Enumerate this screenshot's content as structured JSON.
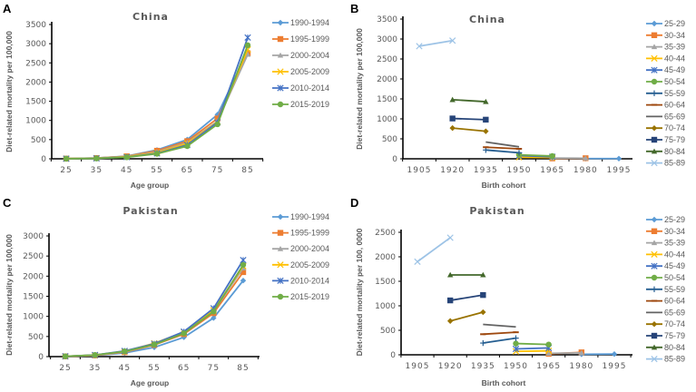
{
  "chart_data": [
    {
      "panel": "A",
      "type": "line",
      "title": "China",
      "xlabel": "Age group",
      "ylabel": "Diet-related mortality per 100,000",
      "categories": [
        "25",
        "35",
        "45",
        "55",
        "65",
        "75",
        "85"
      ],
      "yticks": [
        0,
        500,
        1000,
        1500,
        2000,
        2500,
        3000,
        3500
      ],
      "ylim": [
        0,
        3500
      ],
      "legend": "right",
      "series": [
        {
          "name": "1990-1994",
          "color": "#5B9BD5",
          "marker": "diamond",
          "values": [
            5,
            20,
            70,
            230,
            500,
            1150,
            2800
          ]
        },
        {
          "name": "1995-1999",
          "color": "#ED7D31",
          "marker": "square",
          "values": [
            5,
            20,
            65,
            210,
            460,
            1050,
            2750
          ]
        },
        {
          "name": "2000-2004",
          "color": "#A5A5A5",
          "marker": "triangle",
          "values": [
            4,
            18,
            60,
            180,
            420,
            980,
            2720
          ]
        },
        {
          "name": "2005-2009",
          "color": "#FFC000",
          "marker": "x",
          "values": [
            4,
            15,
            55,
            160,
            400,
            960,
            2850
          ]
        },
        {
          "name": "2010-2014",
          "color": "#4472C4",
          "marker": "star",
          "values": [
            3,
            12,
            45,
            140,
            360,
            950,
            3160
          ]
        },
        {
          "name": "2015-2019",
          "color": "#70AD47",
          "marker": "circle",
          "values": [
            3,
            10,
            40,
            130,
            330,
            900,
            2960
          ]
        }
      ]
    },
    {
      "panel": "B",
      "type": "line",
      "title": "China",
      "xlabel": "Birth cohort",
      "ylabel": "Diet-related mortality per 100,000",
      "categories": [
        "1905",
        "1920",
        "1935",
        "1950",
        "1965",
        "1980",
        "1995"
      ],
      "yticks": [
        0,
        500,
        1000,
        1500,
        2000,
        2500,
        3000,
        3500
      ],
      "ylim": [
        0,
        3500
      ],
      "legend": "right",
      "series": [
        {
          "name": "25-29",
          "color": "#5B9BD5",
          "marker": "diamond",
          "points": [
            [
              1980,
              5
            ],
            [
              1995,
              5
            ]
          ]
        },
        {
          "name": "30-34",
          "color": "#ED7D31",
          "marker": "square",
          "points": [
            [
              1965,
              10
            ],
            [
              1980,
              15
            ]
          ]
        },
        {
          "name": "35-39",
          "color": "#A5A5A5",
          "marker": "triangle",
          "points": [
            [
              1965,
              20
            ],
            [
              1980,
              15
            ]
          ]
        },
        {
          "name": "40-44",
          "color": "#FFC000",
          "marker": "x",
          "points": [
            [
              1950,
              40
            ],
            [
              1965,
              30
            ]
          ]
        },
        {
          "name": "45-49",
          "color": "#4472C4",
          "marker": "star",
          "points": [
            [
              1950,
              80
            ],
            [
              1965,
              50
            ]
          ]
        },
        {
          "name": "50-54",
          "color": "#70AD47",
          "marker": "circle",
          "points": [
            [
              1950,
              100
            ],
            [
              1965,
              70
            ]
          ]
        },
        {
          "name": "55-59",
          "color": "#255E91",
          "marker": "plus",
          "points": [
            [
              1935,
              220
            ],
            [
              1950,
              150
            ]
          ]
        },
        {
          "name": "60-64",
          "color": "#9E480E",
          "marker": "dash",
          "points": [
            [
              1935,
              290
            ],
            [
              1950,
              250
            ]
          ]
        },
        {
          "name": "65-69",
          "color": "#636363",
          "marker": "none",
          "points": [
            [
              1935,
              420
            ],
            [
              1950,
              300
            ]
          ]
        },
        {
          "name": "70-74",
          "color": "#997300",
          "marker": "diamond",
          "points": [
            [
              1920,
              770
            ],
            [
              1935,
              690
            ]
          ]
        },
        {
          "name": "75-79",
          "color": "#264478",
          "marker": "square",
          "points": [
            [
              1920,
              1010
            ],
            [
              1935,
              980
            ]
          ]
        },
        {
          "name": "80-84",
          "color": "#43682B",
          "marker": "triangle",
          "points": [
            [
              1920,
              1480
            ],
            [
              1935,
              1430
            ]
          ]
        },
        {
          "name": "85-89",
          "color": "#9DC3E6",
          "marker": "x",
          "points": [
            [
              1905,
              2820
            ],
            [
              1920,
              2960
            ]
          ]
        }
      ]
    },
    {
      "panel": "C",
      "type": "line",
      "title": "Pakistan",
      "xlabel": "Age group",
      "ylabel": "Diet-related mortality per 100,000",
      "categories": [
        "25",
        "35",
        "45",
        "55",
        "65",
        "75",
        "85"
      ],
      "yticks": [
        0,
        500,
        1000,
        1500,
        2000,
        2500,
        3000
      ],
      "ylim": [
        0,
        3000
      ],
      "legend": "right",
      "series": [
        {
          "name": "1990-1994",
          "color": "#5B9BD5",
          "marker": "diamond",
          "values": [
            5,
            25,
            90,
            230,
            480,
            960,
            1890
          ]
        },
        {
          "name": "1995-1999",
          "color": "#ED7D31",
          "marker": "square",
          "values": [
            6,
            30,
            110,
            290,
            560,
            1080,
            2100
          ]
        },
        {
          "name": "2000-2004",
          "color": "#A5A5A5",
          "marker": "triangle",
          "values": [
            7,
            35,
            120,
            310,
            590,
            1130,
            2200
          ]
        },
        {
          "name": "2005-2009",
          "color": "#FFC000",
          "marker": "x",
          "values": [
            7,
            38,
            130,
            330,
            610,
            1150,
            2250
          ]
        },
        {
          "name": "2010-2014",
          "color": "#4472C4",
          "marker": "star",
          "values": [
            8,
            40,
            140,
            320,
            620,
            1200,
            2400
          ]
        },
        {
          "name": "2015-2019",
          "color": "#70AD47",
          "marker": "circle",
          "values": [
            8,
            40,
            130,
            300,
            580,
            1120,
            2280
          ]
        }
      ]
    },
    {
      "panel": "D",
      "type": "line",
      "title": "Pakistan",
      "xlabel": "Birth cohort",
      "ylabel": "Diet-related mortality per 100, 0000",
      "categories": [
        "1905",
        "1920",
        "1935",
        "1950",
        "1965",
        "1980",
        "1995"
      ],
      "yticks": [
        0,
        500,
        1000,
        1500,
        2000,
        2500
      ],
      "ylim": [
        0,
        2500
      ],
      "legend": "right",
      "series": [
        {
          "name": "25-29",
          "color": "#5B9BD5",
          "marker": "diamond",
          "points": [
            [
              1980,
              10
            ],
            [
              1995,
              15
            ]
          ]
        },
        {
          "name": "30-34",
          "color": "#ED7D31",
          "marker": "square",
          "points": [
            [
              1965,
              20
            ],
            [
              1980,
              50
            ]
          ]
        },
        {
          "name": "35-39",
          "color": "#A5A5A5",
          "marker": "triangle",
          "points": [
            [
              1965,
              30
            ],
            [
              1980,
              40
            ]
          ]
        },
        {
          "name": "40-44",
          "color": "#FFC000",
          "marker": "x",
          "points": [
            [
              1950,
              70
            ],
            [
              1965,
              80
            ]
          ]
        },
        {
          "name": "45-49",
          "color": "#4472C4",
          "marker": "star",
          "points": [
            [
              1950,
              120
            ],
            [
              1965,
              140
            ]
          ]
        },
        {
          "name": "50-54",
          "color": "#70AD47",
          "marker": "circle",
          "points": [
            [
              1950,
              230
            ],
            [
              1965,
              210
            ]
          ]
        },
        {
          "name": "55-59",
          "color": "#255E91",
          "marker": "plus",
          "points": [
            [
              1935,
              240
            ],
            [
              1950,
              340
            ]
          ]
        },
        {
          "name": "60-64",
          "color": "#9E480E",
          "marker": "dash",
          "points": [
            [
              1935,
              420
            ],
            [
              1950,
              460
            ]
          ]
        },
        {
          "name": "65-69",
          "color": "#636363",
          "marker": "none",
          "points": [
            [
              1935,
              620
            ],
            [
              1950,
              570
            ]
          ]
        },
        {
          "name": "70-74",
          "color": "#997300",
          "marker": "diamond",
          "points": [
            [
              1920,
              690
            ],
            [
              1935,
              870
            ]
          ]
        },
        {
          "name": "75-79",
          "color": "#264478",
          "marker": "square",
          "points": [
            [
              1920,
              1110
            ],
            [
              1935,
              1220
            ]
          ]
        },
        {
          "name": "80-84",
          "color": "#43682B",
          "marker": "triangle",
          "points": [
            [
              1920,
              1630
            ],
            [
              1935,
              1630
            ]
          ]
        },
        {
          "name": "85-89",
          "color": "#9DC3E6",
          "marker": "x",
          "points": [
            [
              1905,
              1900
            ],
            [
              1920,
              2390
            ]
          ]
        }
      ]
    }
  ]
}
